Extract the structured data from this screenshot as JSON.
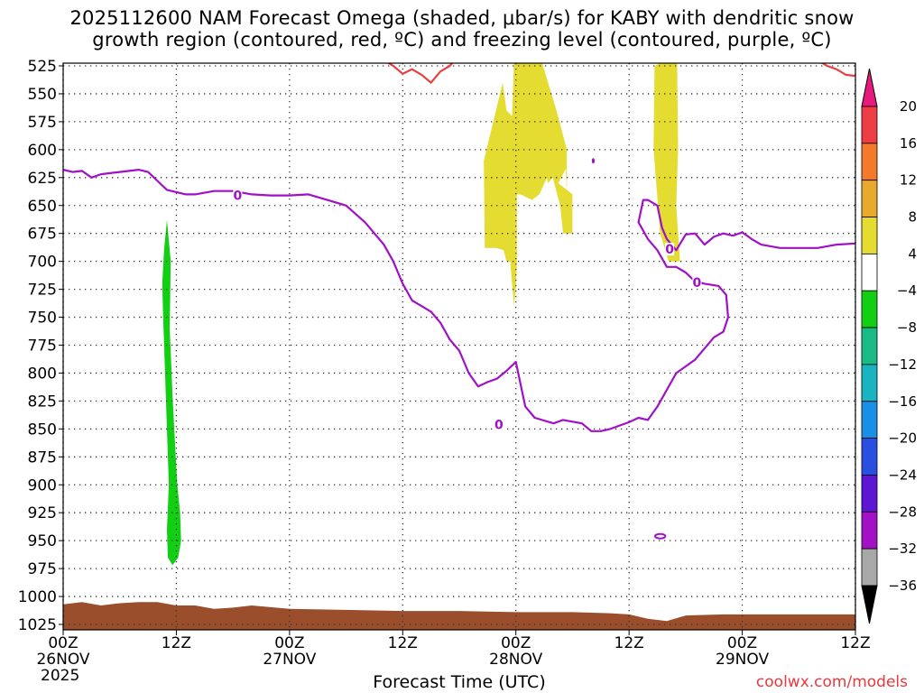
{
  "chart_data": {
    "type": "contour",
    "title_lines": [
      "2025112600 NAM Forecast Omega (shaded, μbar/s) for KABY with dendritic snow",
      "growth region (contoured, red, ºC) and freezing level (contoured, purple, ºC)"
    ],
    "xlabel": "Forecast Time (UTC)",
    "x_ticks": [
      {
        "hour": 0,
        "lines": [
          "00Z",
          "26NOV",
          "2025"
        ]
      },
      {
        "hour": 12,
        "lines": [
          "12Z"
        ]
      },
      {
        "hour": 24,
        "lines": [
          "00Z",
          "27NOV"
        ]
      },
      {
        "hour": 36,
        "lines": [
          "12Z"
        ]
      },
      {
        "hour": 48,
        "lines": [
          "00Z",
          "28NOV"
        ]
      },
      {
        "hour": 60,
        "lines": [
          "12Z"
        ]
      },
      {
        "hour": 72,
        "lines": [
          "00Z",
          "29NOV"
        ]
      },
      {
        "hour": 84,
        "lines": [
          "12Z"
        ]
      }
    ],
    "xlim": [
      0,
      84
    ],
    "y_ticks": [
      525,
      550,
      575,
      600,
      625,
      650,
      675,
      700,
      725,
      750,
      775,
      800,
      825,
      850,
      875,
      900,
      925,
      950,
      975,
      1000,
      1025
    ],
    "ylim": [
      520,
      1030
    ],
    "grid": true,
    "colorbar": {
      "labels": [
        "20",
        "16",
        "12",
        "8",
        "4",
        "−4",
        "−8",
        "−12",
        "−16",
        "−20",
        "−24",
        "−28",
        "−32",
        "−36"
      ],
      "bands": [
        {
          "from": 16,
          "to": 20,
          "color": "#ee3c46"
        },
        {
          "from": 12,
          "to": 16,
          "color": "#f47a2b"
        },
        {
          "from": 8,
          "to": 12,
          "color": "#e7aa2f"
        },
        {
          "from": 4,
          "to": 8,
          "color": "#e5dc32"
        },
        {
          "from": -4,
          "to": 4,
          "color": "#ffffff"
        },
        {
          "from": -8,
          "to": -4,
          "color": "#13cf13"
        },
        {
          "from": -12,
          "to": -8,
          "color": "#18bb86"
        },
        {
          "from": -16,
          "to": -12,
          "color": "#19b4bf"
        },
        {
          "from": -20,
          "to": -16,
          "color": "#1a8fe6"
        },
        {
          "from": -24,
          "to": -20,
          "color": "#2a4fe0"
        },
        {
          "from": -28,
          "to": -24,
          "color": "#5f16d4"
        },
        {
          "from": -32,
          "to": -28,
          "color": "#a211c4"
        },
        {
          "from": -36,
          "to": -32,
          "color": "#a8a8a8"
        }
      ],
      "top_arrow_color": "#e8197d",
      "bottom_arrow_color": "#000000"
    },
    "omega_regions": [
      {
        "color": "#13cf13",
        "points": [
          [
            11.0,
            663
          ],
          [
            11.4,
            700
          ],
          [
            11.3,
            760
          ],
          [
            11.6,
            820
          ],
          [
            11.9,
            870
          ],
          [
            12.1,
            900
          ],
          [
            12.4,
            925
          ],
          [
            12.5,
            950
          ],
          [
            12.2,
            965
          ],
          [
            11.6,
            972
          ],
          [
            11.1,
            965
          ],
          [
            11.0,
            940
          ],
          [
            11.2,
            900
          ],
          [
            11.0,
            850
          ],
          [
            10.8,
            800
          ],
          [
            10.6,
            750
          ],
          [
            10.5,
            720
          ],
          [
            10.7,
            690
          ]
        ]
      },
      {
        "color": "#e5dc32",
        "points": [
          [
            46.6,
            540
          ],
          [
            47.0,
            565
          ],
          [
            47.6,
            570
          ],
          [
            47.8,
            520
          ],
          [
            50.7,
            520
          ],
          [
            52.3,
            565
          ],
          [
            53.4,
            600
          ],
          [
            53.4,
            640
          ],
          [
            53.3,
            617
          ],
          [
            52.5,
            630
          ],
          [
            54.0,
            640
          ],
          [
            54.0,
            675
          ],
          [
            53.0,
            675
          ],
          [
            52.7,
            650
          ],
          [
            51.9,
            625
          ],
          [
            51.4,
            630
          ],
          [
            50.6,
            600
          ],
          [
            51.3,
            625
          ],
          [
            50.5,
            640
          ],
          [
            49.7,
            645
          ],
          [
            48.5,
            640
          ],
          [
            48.1,
            640
          ],
          [
            48.1,
            700
          ],
          [
            48.0,
            725
          ],
          [
            47.8,
            740
          ],
          [
            47.4,
            700
          ],
          [
            47.0,
            700
          ],
          [
            46.7,
            690
          ],
          [
            45.9,
            688
          ],
          [
            44.7,
            688
          ],
          [
            44.6,
            610
          ]
        ]
      },
      {
        "color": "#e5dc32",
        "points": [
          [
            63.9,
            520
          ],
          [
            65.1,
            520
          ],
          [
            65.2,
            600
          ],
          [
            65.0,
            650
          ],
          [
            65.4,
            700
          ],
          [
            64.2,
            700
          ],
          [
            63.3,
            675
          ],
          [
            62.6,
            600
          ],
          [
            62.7,
            525
          ]
        ]
      }
    ],
    "freezing_level_0C": {
      "color": "#a010c8",
      "label": "0",
      "main_line": [
        [
          0,
          618
        ],
        [
          1,
          620
        ],
        [
          2,
          619
        ],
        [
          3,
          625
        ],
        [
          4,
          622
        ],
        [
          6,
          620
        ],
        [
          8,
          618
        ],
        [
          9,
          620
        ],
        [
          10,
          628
        ],
        [
          11,
          636
        ],
        [
          12,
          638
        ],
        [
          13,
          640
        ],
        [
          14,
          640
        ],
        [
          16,
          637
        ],
        [
          18,
          637
        ],
        [
          20,
          640
        ],
        [
          22,
          641
        ],
        [
          24,
          641
        ],
        [
          26,
          640
        ],
        [
          28,
          645
        ],
        [
          30,
          650
        ],
        [
          32,
          665
        ],
        [
          34,
          685
        ],
        [
          35,
          700
        ],
        [
          36,
          720
        ],
        [
          37,
          735
        ],
        [
          38,
          740
        ],
        [
          39,
          745
        ],
        [
          40,
          755
        ],
        [
          41,
          770
        ],
        [
          42,
          780
        ],
        [
          43,
          800
        ],
        [
          44,
          812
        ],
        [
          45,
          808
        ],
        [
          46,
          805
        ],
        [
          47,
          798
        ],
        [
          48,
          790
        ],
        [
          48.5,
          810
        ],
        [
          49,
          830
        ],
        [
          50,
          840
        ],
        [
          52,
          845
        ],
        [
          53,
          842
        ],
        [
          55,
          845
        ],
        [
          56,
          852
        ],
        [
          57,
          852
        ],
        [
          58,
          850
        ],
        [
          60,
          844
        ],
        [
          61,
          840
        ],
        [
          62,
          842
        ],
        [
          63,
          830
        ],
        [
          64,
          815
        ],
        [
          65,
          800
        ],
        [
          67,
          788
        ],
        [
          68,
          778
        ],
        [
          69,
          768
        ],
        [
          70,
          763
        ],
        [
          70.5,
          750
        ],
        [
          70.3,
          730
        ],
        [
          69.5,
          722
        ],
        [
          68,
          720
        ],
        [
          67,
          718
        ],
        [
          66,
          710
        ],
        [
          65,
          705
        ],
        [
          64,
          705
        ],
        [
          63,
          690
        ],
        [
          62,
          680
        ],
        [
          61,
          665
        ],
        [
          61.5,
          645
        ],
        [
          62,
          645
        ],
        [
          63,
          650
        ],
        [
          63.5,
          670
        ],
        [
          64,
          680
        ],
        [
          65,
          690
        ],
        [
          66,
          676
        ],
        [
          67,
          675
        ],
        [
          68,
          685
        ],
        [
          69,
          678
        ],
        [
          70,
          675
        ],
        [
          71,
          677
        ],
        [
          72,
          674
        ],
        [
          73,
          680
        ],
        [
          74,
          685
        ],
        [
          76,
          688
        ],
        [
          78,
          688
        ],
        [
          80,
          688
        ],
        [
          82,
          685
        ],
        [
          84,
          684
        ]
      ],
      "small_contour": {
        "center": [
          63.3,
          946
        ],
        "rx": 0.35,
        "ry": 2.5
      },
      "dot": [
        56.2,
        610
      ]
    },
    "dendritic_region_-12C": {
      "color": "#e84040",
      "segments": [
        [
          [
            34,
            520
          ],
          [
            35,
            525
          ],
          [
            36,
            532
          ],
          [
            37,
            528
          ],
          [
            38,
            533
          ],
          [
            39,
            540
          ],
          [
            40,
            530
          ],
          [
            41,
            525
          ],
          [
            41.5,
            520
          ]
        ],
        [
          [
            80,
            520
          ],
          [
            81,
            525
          ],
          [
            82,
            528
          ],
          [
            83,
            533
          ],
          [
            84,
            534
          ]
        ]
      ]
    },
    "terrain": {
      "color": "#9a4e2b",
      "top_profile": [
        [
          0,
          1007
        ],
        [
          2,
          1005
        ],
        [
          4,
          1008
        ],
        [
          6,
          1006
        ],
        [
          8,
          1005
        ],
        [
          10,
          1005
        ],
        [
          12,
          1008
        ],
        [
          14,
          1008
        ],
        [
          16,
          1011
        ],
        [
          18,
          1010
        ],
        [
          20,
          1008
        ],
        [
          24,
          1011
        ],
        [
          30,
          1012
        ],
        [
          36,
          1013
        ],
        [
          42,
          1013
        ],
        [
          48,
          1014
        ],
        [
          54,
          1014
        ],
        [
          58,
          1015
        ],
        [
          60,
          1016
        ],
        [
          62,
          1020
        ],
        [
          64,
          1022
        ],
        [
          66,
          1017
        ],
        [
          70,
          1016
        ],
        [
          76,
          1016
        ],
        [
          84,
          1016
        ]
      ]
    }
  },
  "credit": "coolwx.com/models"
}
